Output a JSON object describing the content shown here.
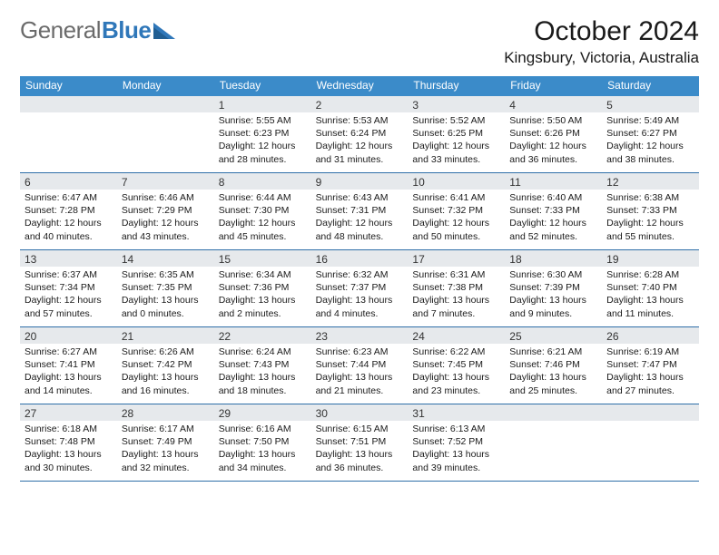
{
  "logo": {
    "general": "General",
    "blue": "Blue"
  },
  "title": "October 2024",
  "location": "Kingsbury, Victoria, Australia",
  "colors": {
    "header_bg": "#3b8bc9",
    "header_text": "#ffffff",
    "daynum_bg": "#e6e9ec",
    "border": "#2f6fa8",
    "logo_gray": "#6b6b6b",
    "logo_blue": "#2f77b9"
  },
  "day_headers": [
    "Sunday",
    "Monday",
    "Tuesday",
    "Wednesday",
    "Thursday",
    "Friday",
    "Saturday"
  ],
  "weeks": [
    [
      {
        "n": "",
        "empty": true
      },
      {
        "n": "",
        "empty": true
      },
      {
        "n": "1",
        "sr": "Sunrise: 5:55 AM",
        "ss": "Sunset: 6:23 PM",
        "d1": "Daylight: 12 hours",
        "d2": "and 28 minutes."
      },
      {
        "n": "2",
        "sr": "Sunrise: 5:53 AM",
        "ss": "Sunset: 6:24 PM",
        "d1": "Daylight: 12 hours",
        "d2": "and 31 minutes."
      },
      {
        "n": "3",
        "sr": "Sunrise: 5:52 AM",
        "ss": "Sunset: 6:25 PM",
        "d1": "Daylight: 12 hours",
        "d2": "and 33 minutes."
      },
      {
        "n": "4",
        "sr": "Sunrise: 5:50 AM",
        "ss": "Sunset: 6:26 PM",
        "d1": "Daylight: 12 hours",
        "d2": "and 36 minutes."
      },
      {
        "n": "5",
        "sr": "Sunrise: 5:49 AM",
        "ss": "Sunset: 6:27 PM",
        "d1": "Daylight: 12 hours",
        "d2": "and 38 minutes."
      }
    ],
    [
      {
        "n": "6",
        "sr": "Sunrise: 6:47 AM",
        "ss": "Sunset: 7:28 PM",
        "d1": "Daylight: 12 hours",
        "d2": "and 40 minutes."
      },
      {
        "n": "7",
        "sr": "Sunrise: 6:46 AM",
        "ss": "Sunset: 7:29 PM",
        "d1": "Daylight: 12 hours",
        "d2": "and 43 minutes."
      },
      {
        "n": "8",
        "sr": "Sunrise: 6:44 AM",
        "ss": "Sunset: 7:30 PM",
        "d1": "Daylight: 12 hours",
        "d2": "and 45 minutes."
      },
      {
        "n": "9",
        "sr": "Sunrise: 6:43 AM",
        "ss": "Sunset: 7:31 PM",
        "d1": "Daylight: 12 hours",
        "d2": "and 48 minutes."
      },
      {
        "n": "10",
        "sr": "Sunrise: 6:41 AM",
        "ss": "Sunset: 7:32 PM",
        "d1": "Daylight: 12 hours",
        "d2": "and 50 minutes."
      },
      {
        "n": "11",
        "sr": "Sunrise: 6:40 AM",
        "ss": "Sunset: 7:33 PM",
        "d1": "Daylight: 12 hours",
        "d2": "and 52 minutes."
      },
      {
        "n": "12",
        "sr": "Sunrise: 6:38 AM",
        "ss": "Sunset: 7:33 PM",
        "d1": "Daylight: 12 hours",
        "d2": "and 55 minutes."
      }
    ],
    [
      {
        "n": "13",
        "sr": "Sunrise: 6:37 AM",
        "ss": "Sunset: 7:34 PM",
        "d1": "Daylight: 12 hours",
        "d2": "and 57 minutes."
      },
      {
        "n": "14",
        "sr": "Sunrise: 6:35 AM",
        "ss": "Sunset: 7:35 PM",
        "d1": "Daylight: 13 hours",
        "d2": "and 0 minutes."
      },
      {
        "n": "15",
        "sr": "Sunrise: 6:34 AM",
        "ss": "Sunset: 7:36 PM",
        "d1": "Daylight: 13 hours",
        "d2": "and 2 minutes."
      },
      {
        "n": "16",
        "sr": "Sunrise: 6:32 AM",
        "ss": "Sunset: 7:37 PM",
        "d1": "Daylight: 13 hours",
        "d2": "and 4 minutes."
      },
      {
        "n": "17",
        "sr": "Sunrise: 6:31 AM",
        "ss": "Sunset: 7:38 PM",
        "d1": "Daylight: 13 hours",
        "d2": "and 7 minutes."
      },
      {
        "n": "18",
        "sr": "Sunrise: 6:30 AM",
        "ss": "Sunset: 7:39 PM",
        "d1": "Daylight: 13 hours",
        "d2": "and 9 minutes."
      },
      {
        "n": "19",
        "sr": "Sunrise: 6:28 AM",
        "ss": "Sunset: 7:40 PM",
        "d1": "Daylight: 13 hours",
        "d2": "and 11 minutes."
      }
    ],
    [
      {
        "n": "20",
        "sr": "Sunrise: 6:27 AM",
        "ss": "Sunset: 7:41 PM",
        "d1": "Daylight: 13 hours",
        "d2": "and 14 minutes."
      },
      {
        "n": "21",
        "sr": "Sunrise: 6:26 AM",
        "ss": "Sunset: 7:42 PM",
        "d1": "Daylight: 13 hours",
        "d2": "and 16 minutes."
      },
      {
        "n": "22",
        "sr": "Sunrise: 6:24 AM",
        "ss": "Sunset: 7:43 PM",
        "d1": "Daylight: 13 hours",
        "d2": "and 18 minutes."
      },
      {
        "n": "23",
        "sr": "Sunrise: 6:23 AM",
        "ss": "Sunset: 7:44 PM",
        "d1": "Daylight: 13 hours",
        "d2": "and 21 minutes."
      },
      {
        "n": "24",
        "sr": "Sunrise: 6:22 AM",
        "ss": "Sunset: 7:45 PM",
        "d1": "Daylight: 13 hours",
        "d2": "and 23 minutes."
      },
      {
        "n": "25",
        "sr": "Sunrise: 6:21 AM",
        "ss": "Sunset: 7:46 PM",
        "d1": "Daylight: 13 hours",
        "d2": "and 25 minutes."
      },
      {
        "n": "26",
        "sr": "Sunrise: 6:19 AM",
        "ss": "Sunset: 7:47 PM",
        "d1": "Daylight: 13 hours",
        "d2": "and 27 minutes."
      }
    ],
    [
      {
        "n": "27",
        "sr": "Sunrise: 6:18 AM",
        "ss": "Sunset: 7:48 PM",
        "d1": "Daylight: 13 hours",
        "d2": "and 30 minutes."
      },
      {
        "n": "28",
        "sr": "Sunrise: 6:17 AM",
        "ss": "Sunset: 7:49 PM",
        "d1": "Daylight: 13 hours",
        "d2": "and 32 minutes."
      },
      {
        "n": "29",
        "sr": "Sunrise: 6:16 AM",
        "ss": "Sunset: 7:50 PM",
        "d1": "Daylight: 13 hours",
        "d2": "and 34 minutes."
      },
      {
        "n": "30",
        "sr": "Sunrise: 6:15 AM",
        "ss": "Sunset: 7:51 PM",
        "d1": "Daylight: 13 hours",
        "d2": "and 36 minutes."
      },
      {
        "n": "31",
        "sr": "Sunrise: 6:13 AM",
        "ss": "Sunset: 7:52 PM",
        "d1": "Daylight: 13 hours",
        "d2": "and 39 minutes."
      },
      {
        "n": "",
        "empty": true
      },
      {
        "n": "",
        "empty": true
      }
    ]
  ]
}
